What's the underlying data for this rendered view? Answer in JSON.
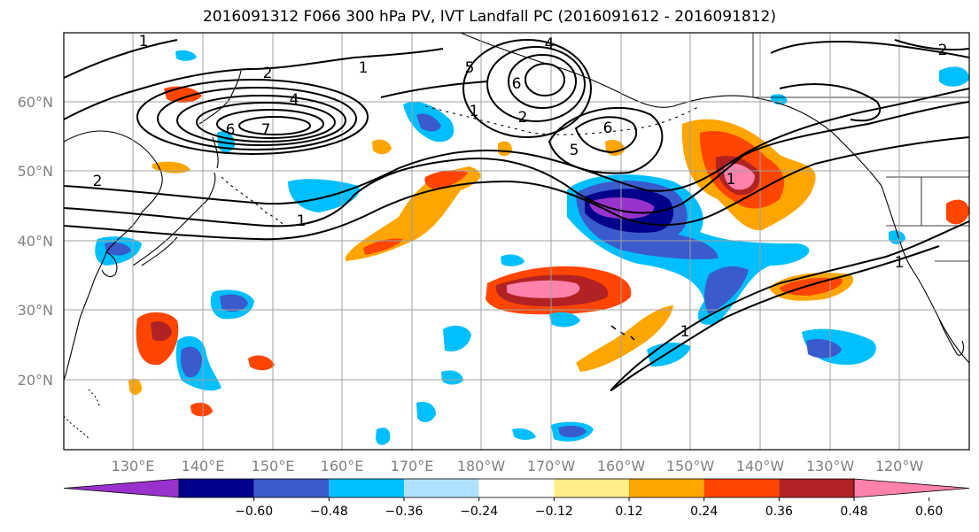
{
  "title": "2016091312 F066 300 hPa PV, IVT Landfall PC (2016091612 - 2016091812)",
  "map": {
    "lat_labels": [
      "60°N",
      "50°N",
      "40°N",
      "30°N",
      "20°N"
    ],
    "lon_labels": [
      "130°E",
      "140°E",
      "150°E",
      "160°E",
      "170°E",
      "180°W",
      "170°W",
      "160°W",
      "150°W",
      "140°W",
      "130°W",
      "120°W"
    ],
    "contour_labels": [
      "1",
      "2",
      "4",
      "6",
      "7",
      "2",
      "1",
      "4",
      "5",
      "6",
      "1",
      "2",
      "5",
      "6",
      "1",
      "1",
      "1",
      "1",
      "2"
    ],
    "gridlines": true,
    "line_color": "#000000"
  },
  "colorbar": {
    "colors": [
      "#9932cc",
      "#00008b",
      "#3a5bcc",
      "#00bfff",
      "#b0e2ff",
      "#ffffff",
      "#ffed8a",
      "#ffa500",
      "#ff4500",
      "#b22222",
      "#ff82ab"
    ],
    "tick_labels": [
      "−0.60",
      "−0.48",
      "−0.36",
      "−0.24",
      "−0.12",
      "0.12",
      "0.24",
      "0.36",
      "0.48",
      "0.60"
    ]
  },
  "colors": {
    "grid": "#a0a0a0",
    "axis_label": "#808080"
  }
}
